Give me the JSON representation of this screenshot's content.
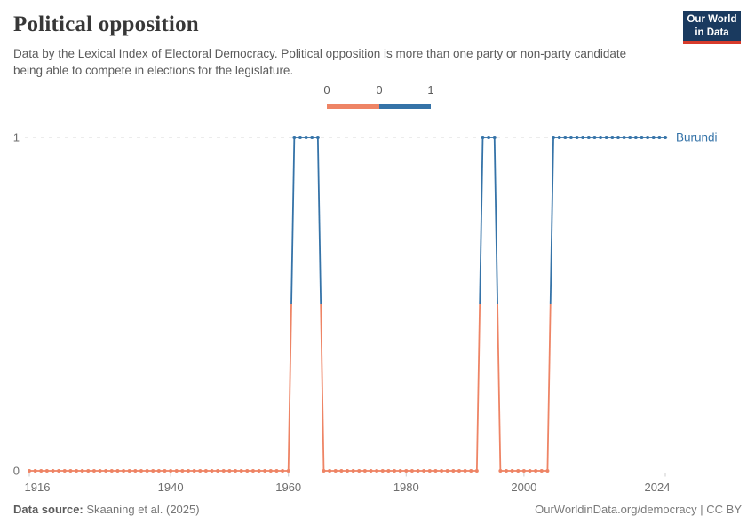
{
  "header": {
    "title": "Political opposition",
    "subtitle": "Data by the Lexical Index of Electoral Democracy. Political opposition is more than one party or non-party candidate being able to compete in elections for the legislature.",
    "logo_line1": "Our World",
    "logo_line2": "in Data",
    "logo_colors": {
      "background": "#1a3a5f",
      "bar": "#d73b2b"
    }
  },
  "legend": {
    "tick_labels": [
      "0",
      "0",
      "1"
    ],
    "segments": [
      {
        "value": 0,
        "color": "#EE8465"
      },
      {
        "value": 1,
        "color": "#3573A8"
      }
    ]
  },
  "chart_data": {
    "type": "line",
    "title": "Political opposition",
    "entity_label": "Burundi",
    "xlim": [
      1916,
      2024
    ],
    "ylim": [
      0,
      1
    ],
    "x_ticks": [
      1916,
      1940,
      1960,
      1980,
      2000,
      2024
    ],
    "y_ticks": [
      0,
      1
    ],
    "grid": "dashed horizontal gridline at y=1, solid axis at y=0",
    "legend_position": "top-center",
    "marker": "circle at every yearly data point",
    "value_colors": {
      "0": "#EE8465",
      "1": "#3573A8"
    },
    "series": [
      {
        "name": "Burundi",
        "color": "#3573A8",
        "segments": [
          {
            "start_year": 1916,
            "end_year": 1960,
            "value": 0
          },
          {
            "start_year": 1961,
            "end_year": 1965,
            "value": 1
          },
          {
            "start_year": 1966,
            "end_year": 1992,
            "value": 0
          },
          {
            "start_year": 1993,
            "end_year": 1995,
            "value": 1
          },
          {
            "start_year": 1996,
            "end_year": 2004,
            "value": 0
          },
          {
            "start_year": 2005,
            "end_year": 2024,
            "value": 1
          }
        ]
      }
    ]
  },
  "footer": {
    "source_label": "Data source:",
    "source_value": "Skaaning et al. (2025)",
    "credit": "OurWorldinData.org/democracy | CC BY"
  }
}
